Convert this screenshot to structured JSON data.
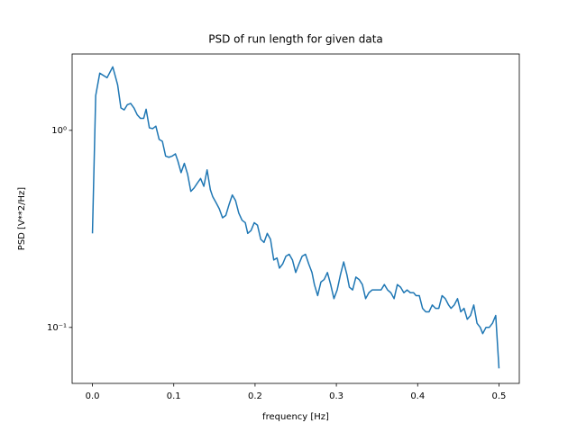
{
  "chart_data": {
    "type": "line",
    "title": "PSD of run length for given data",
    "x_label": "frequency [Hz]",
    "y_label": "PSD [V**2/Hz]",
    "y_scale": "log",
    "xlim": [
      -0.025,
      0.525
    ],
    "ylim": [
      0.052,
      2.44
    ],
    "xticks": [
      {
        "value": 0,
        "label": "0.0"
      },
      0.1,
      0.2,
      0.3,
      0.4,
      0.5
    ],
    "yticks": [
      {
        "value": 0.1,
        "label": "10⁻¹"
      },
      {
        "value": 1,
        "label": "10⁰"
      }
    ],
    "x": [
      0,
      0.004,
      0.009,
      0.018,
      0.025,
      0.031,
      0.035,
      0.039,
      0.043,
      0.047,
      0.051,
      0.055,
      0.059,
      0.063,
      0.066,
      0.07,
      0.074,
      0.078,
      0.082,
      0.086,
      0.09,
      0.094,
      0.098,
      0.102,
      0.105,
      0.109,
      0.113,
      0.117,
      0.121,
      0.125,
      0.129,
      0.133,
      0.137,
      0.141,
      0.145,
      0.148,
      0.152,
      0.156,
      0.16,
      0.164,
      0.168,
      0.172,
      0.176,
      0.18,
      0.184,
      0.188,
      0.191,
      0.195,
      0.199,
      0.203,
      0.207,
      0.211,
      0.215,
      0.219,
      0.223,
      0.227,
      0.23,
      0.234,
      0.238,
      0.242,
      0.246,
      0.25,
      0.254,
      0.258,
      0.262,
      0.266,
      0.27,
      0.273,
      0.277,
      0.281,
      0.285,
      0.289,
      0.293,
      0.297,
      0.301,
      0.305,
      0.309,
      0.313,
      0.316,
      0.32,
      0.324,
      0.328,
      0.332,
      0.336,
      0.34,
      0.344,
      0.348,
      0.352,
      0.355,
      0.359,
      0.363,
      0.367,
      0.371,
      0.375,
      0.379,
      0.383,
      0.387,
      0.391,
      0.395,
      0.398,
      0.402,
      0.406,
      0.41,
      0.414,
      0.418,
      0.422,
      0.426,
      0.43,
      0.434,
      0.438,
      0.441,
      0.445,
      0.449,
      0.453,
      0.457,
      0.461,
      0.465,
      0.469,
      0.473,
      0.477,
      0.48,
      0.484,
      0.488,
      0.492,
      0.496,
      0.5
    ],
    "series": [
      {
        "name": "PSD",
        "color": "#1f77b4",
        "values": [
          0.3,
          1.5,
          1.95,
          1.85,
          2.1,
          1.7,
          1.3,
          1.27,
          1.35,
          1.37,
          1.3,
          1.2,
          1.15,
          1.15,
          1.28,
          1.03,
          1.02,
          1.05,
          0.9,
          0.88,
          0.74,
          0.73,
          0.74,
          0.76,
          0.7,
          0.61,
          0.68,
          0.6,
          0.49,
          0.51,
          0.54,
          0.57,
          0.52,
          0.63,
          0.5,
          0.46,
          0.43,
          0.4,
          0.36,
          0.37,
          0.42,
          0.47,
          0.44,
          0.38,
          0.35,
          0.34,
          0.3,
          0.31,
          0.34,
          0.33,
          0.28,
          0.27,
          0.3,
          0.28,
          0.22,
          0.225,
          0.2,
          0.21,
          0.23,
          0.235,
          0.22,
          0.19,
          0.21,
          0.23,
          0.235,
          0.21,
          0.19,
          0.165,
          0.145,
          0.17,
          0.175,
          0.19,
          0.165,
          0.14,
          0.155,
          0.185,
          0.215,
          0.185,
          0.16,
          0.155,
          0.18,
          0.175,
          0.165,
          0.14,
          0.15,
          0.155,
          0.155,
          0.155,
          0.155,
          0.165,
          0.155,
          0.15,
          0.14,
          0.165,
          0.16,
          0.15,
          0.155,
          0.15,
          0.15,
          0.145,
          0.145,
          0.125,
          0.12,
          0.12,
          0.13,
          0.125,
          0.125,
          0.145,
          0.14,
          0.13,
          0.125,
          0.13,
          0.14,
          0.12,
          0.125,
          0.11,
          0.115,
          0.13,
          0.105,
          0.1,
          0.093,
          0.1,
          0.1,
          0.105,
          0.115,
          0.062
        ]
      }
    ]
  }
}
